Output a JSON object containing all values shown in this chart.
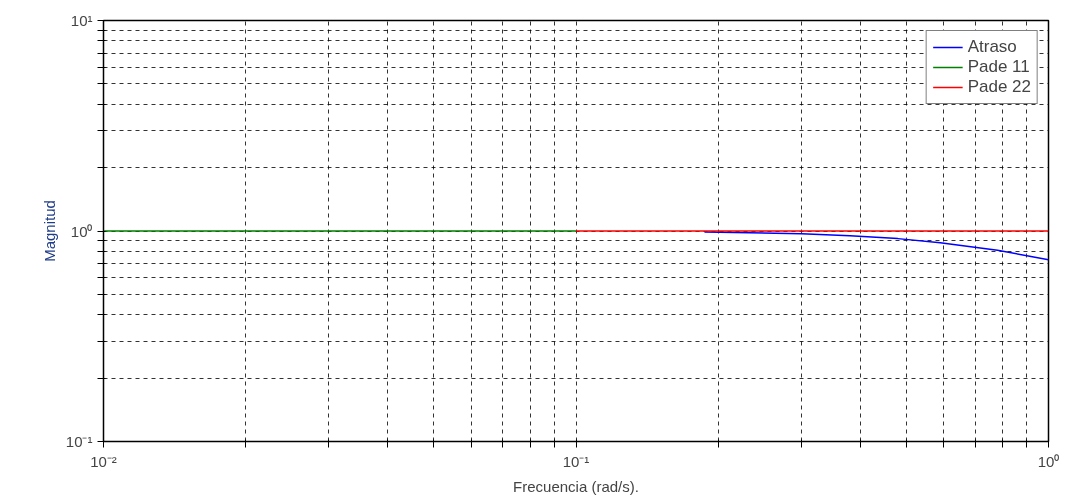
{
  "chart_data": {
    "type": "line",
    "xlabel": "Frecuencia (rad/s).",
    "ylabel": "Magnitud",
    "log": "xy",
    "grid": true,
    "legend": "top right",
    "line_style": "solid",
    "marker": "none",
    "xlim": [
      0.01,
      1
    ],
    "ylim": [
      0.1,
      10
    ],
    "xticks": [
      {
        "value": 0.01,
        "label": "10⁻²"
      },
      {
        "value": 0.02,
        "label": null
      },
      {
        "value": 0.03,
        "label": null
      },
      {
        "value": 0.04,
        "label": null
      },
      {
        "value": 0.05,
        "label": null
      },
      {
        "value": 0.06,
        "label": null
      },
      {
        "value": 0.07,
        "label": null
      },
      {
        "value": 0.08,
        "label": null
      },
      {
        "value": 0.09,
        "label": null
      },
      {
        "value": 0.1,
        "label": "10⁻¹"
      },
      {
        "value": 0.2,
        "label": null
      },
      {
        "value": 0.3,
        "label": null
      },
      {
        "value": 0.4,
        "label": null
      },
      {
        "value": 0.5,
        "label": null
      },
      {
        "value": 0.6,
        "label": null
      },
      {
        "value": 0.7,
        "label": null
      },
      {
        "value": 0.8,
        "label": null
      },
      {
        "value": 0.9,
        "label": null
      },
      {
        "value": 1,
        "label": "10⁰"
      }
    ],
    "yticks": [
      {
        "value": 0.1,
        "label": "10⁻¹"
      },
      {
        "value": 0.2,
        "label": null
      },
      {
        "value": 0.3,
        "label": null
      },
      {
        "value": 0.4,
        "label": null
      },
      {
        "value": 0.5,
        "label": null
      },
      {
        "value": 0.6,
        "label": null
      },
      {
        "value": 0.7,
        "label": null
      },
      {
        "value": 0.8,
        "label": null
      },
      {
        "value": 0.9,
        "label": null
      },
      {
        "value": 1,
        "label": "10⁰"
      },
      {
        "value": 2,
        "label": null
      },
      {
        "value": 3,
        "label": null
      },
      {
        "value": 4,
        "label": null
      },
      {
        "value": 5,
        "label": null
      },
      {
        "value": 6,
        "label": null
      },
      {
        "value": 7,
        "label": null
      },
      {
        "value": 8,
        "label": null
      },
      {
        "value": 9,
        "label": null
      },
      {
        "value": 10,
        "label": "10¹"
      }
    ],
    "series": [
      {
        "name": "Atraso",
        "color": "#0000ff",
        "x": [
          0.187,
          0.3,
          0.38,
          0.48,
          0.59,
          0.78,
          1
        ],
        "values": [
          0.99,
          0.97,
          0.95,
          0.92,
          0.88,
          0.81,
          0.73
        ]
      },
      {
        "name": "Pade 11",
        "color": "#008000",
        "x": [
          0.01,
          0.1
        ],
        "values": [
          1,
          1
        ]
      },
      {
        "name": "Pade 22",
        "color": "#ff0000",
        "x": [
          0.1,
          1
        ],
        "values": [
          1,
          1
        ]
      }
    ]
  }
}
